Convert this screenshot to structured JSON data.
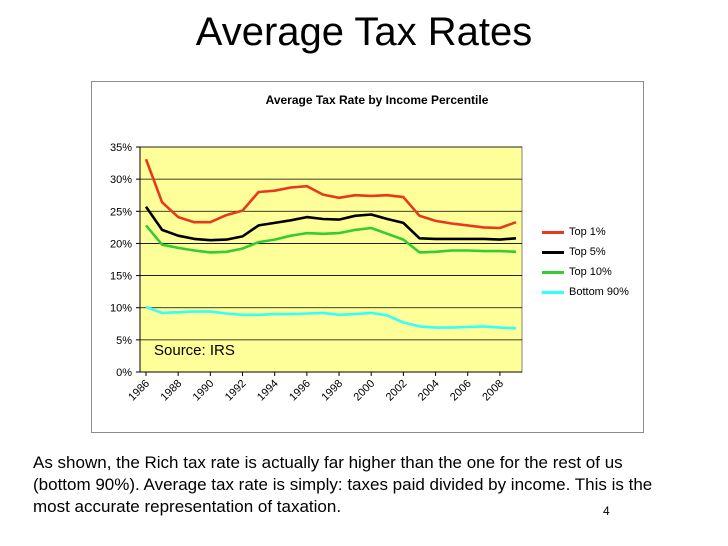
{
  "slide": {
    "title": "Average Tax Rates",
    "source": "Source: IRS",
    "body": "As shown, the Rich tax rate is actually far higher than the one for the rest of us (bottom 90%).  Average tax rate is simply: taxes paid divided by income.  This is the most accurate representation of taxation.",
    "page_number": "4"
  },
  "chart_data": {
    "type": "line",
    "title": "Average Tax Rate by Income Percentile",
    "xlabel": "",
    "ylabel": "",
    "x": [
      1986,
      1987,
      1988,
      1989,
      1990,
      1991,
      1992,
      1993,
      1994,
      1995,
      1996,
      1997,
      1998,
      1999,
      2000,
      2001,
      2002,
      2003,
      2004,
      2005,
      2006,
      2007,
      2008,
      2009
    ],
    "x_tick_labels": [
      "1986",
      "1988",
      "1990",
      "1992",
      "1994",
      "1996",
      "1998",
      "2000",
      "2002",
      "2004",
      "2006",
      "2008"
    ],
    "ylim": [
      0,
      35
    ],
    "y_ticks": [
      0,
      5,
      10,
      15,
      20,
      25,
      30,
      35
    ],
    "y_tick_labels": [
      "0%",
      "5%",
      "10%",
      "15%",
      "20%",
      "25%",
      "30%",
      "35%"
    ],
    "grid": true,
    "plot_background": "#FFFF99",
    "legend_position": "right",
    "series": [
      {
        "name": "Top 1%",
        "color": "#E8391D",
        "values": [
          33.1,
          26.4,
          24.1,
          23.3,
          23.3,
          24.4,
          25.1,
          28.0,
          28.2,
          28.7,
          28.9,
          27.6,
          27.1,
          27.5,
          27.4,
          27.5,
          27.2,
          24.3,
          23.5,
          23.1,
          22.8,
          22.5,
          22.4,
          23.3
        ]
      },
      {
        "name": "Top 5%",
        "color": "#000000",
        "values": [
          25.7,
          22.1,
          21.2,
          20.7,
          20.5,
          20.6,
          21.1,
          22.8,
          23.2,
          23.6,
          24.1,
          23.8,
          23.7,
          24.3,
          24.5,
          23.8,
          23.2,
          20.8,
          20.7,
          20.7,
          20.7,
          20.7,
          20.6,
          20.8
        ]
      },
      {
        "name": "Top 10%",
        "color": "#33CC33",
        "values": [
          22.8,
          19.8,
          19.3,
          18.9,
          18.6,
          18.7,
          19.2,
          20.2,
          20.6,
          21.2,
          21.6,
          21.5,
          21.6,
          22.1,
          22.4,
          21.5,
          20.6,
          18.6,
          18.7,
          18.9,
          18.9,
          18.8,
          18.8,
          18.7
        ]
      },
      {
        "name": "Bottom 90%",
        "color": "#33FFFF",
        "values": [
          10.1,
          9.2,
          9.3,
          9.4,
          9.4,
          9.1,
          8.9,
          8.9,
          9.0,
          9.0,
          9.1,
          9.2,
          8.9,
          9.0,
          9.2,
          8.8,
          7.7,
          7.1,
          6.9,
          6.9,
          7.0,
          7.1,
          6.9,
          6.8
        ]
      }
    ]
  }
}
